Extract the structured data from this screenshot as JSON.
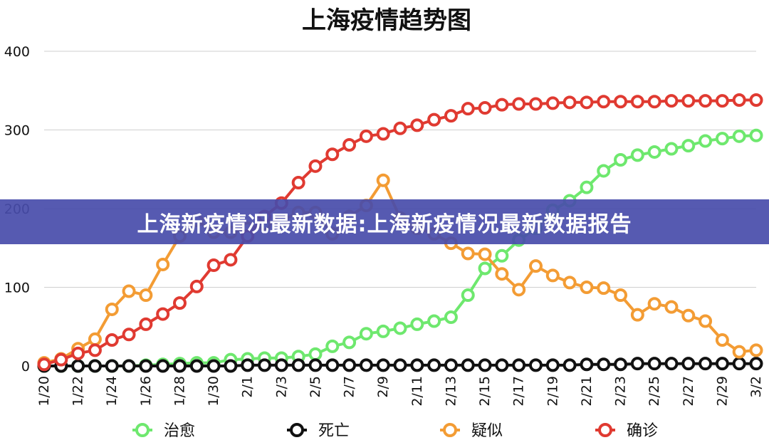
{
  "banner": {
    "text": "上海新疫情况最新数据:上海新疫情况最新数据报告"
  },
  "chart_data": {
    "type": "line",
    "title": "上海疫情趋势图",
    "xlabel": "",
    "ylabel": "",
    "ylim": [
      0,
      400
    ],
    "yticks": [
      "0",
      "100",
      "200",
      "300",
      "400"
    ],
    "grid": true,
    "legend_position": "bottom",
    "x": [
      "1/20",
      "1/21",
      "1/22",
      "1/23",
      "1/24",
      "1/25",
      "1/26",
      "1/27",
      "1/28",
      "1/29",
      "1/30",
      "1/31",
      "2/1",
      "2/2",
      "2/3",
      "2/4",
      "2/5",
      "2/6",
      "2/7",
      "2/8",
      "2/9",
      "2/10",
      "2/11",
      "2/12",
      "2/13",
      "2/14",
      "2/15",
      "2/16",
      "2/17",
      "2/18",
      "2/19",
      "2/20",
      "2/21",
      "2/22",
      "2/23",
      "2/24",
      "2/25",
      "2/26",
      "2/27",
      "2/28",
      "2/29",
      "3/1",
      "3/2"
    ],
    "xtick_labels": [
      "1/20",
      "1/22",
      "1/24",
      "1/26",
      "1/28",
      "1/30",
      "2/1",
      "2/3",
      "2/5",
      "2/7",
      "2/9",
      "2/11",
      "2/13",
      "2/15",
      "2/17",
      "2/19",
      "2/21",
      "2/23",
      "2/25",
      "2/27",
      "2/29",
      "3/2"
    ],
    "series": [
      {
        "name": "治愈",
        "color": "#6ee86e",
        "values": [
          0,
          0,
          0,
          0,
          0,
          0,
          1,
          2,
          3,
          4,
          4,
          8,
          9,
          10,
          10,
          12,
          15,
          25,
          30,
          41,
          44,
          48,
          53,
          57,
          62,
          90,
          124,
          140,
          160,
          175,
          198,
          210,
          227,
          248,
          262,
          268,
          272,
          276,
          280,
          286,
          289,
          292,
          293
        ]
      },
      {
        "name": "死亡",
        "color": "#111111",
        "values": [
          0,
          0,
          0,
          0,
          0,
          0,
          0,
          0,
          0,
          0,
          0,
          0,
          1,
          1,
          1,
          1,
          1,
          1,
          1,
          1,
          1,
          1,
          1,
          1,
          1,
          1,
          1,
          1,
          1,
          1,
          1,
          1,
          2,
          2,
          2,
          3,
          3,
          3,
          3,
          3,
          3,
          3,
          3
        ]
      },
      {
        "name": "疑似",
        "color": "#f39c34",
        "values": [
          4,
          9,
          22,
          34,
          72,
          95,
          90,
          129,
          165,
          185,
          170,
          170,
          175,
          180,
          185,
          195,
          195,
          168,
          190,
          204,
          236,
          188,
          175,
          168,
          156,
          143,
          142,
          117,
          97,
          127,
          115,
          106,
          100,
          99,
          90,
          65,
          79,
          75,
          64,
          57,
          33,
          18,
          20
        ]
      },
      {
        "name": "确诊",
        "color": "#e03a31",
        "values": [
          2,
          8,
          16,
          20,
          33,
          40,
          53,
          66,
          80,
          101,
          128,
          135,
          165,
          190,
          207,
          233,
          254,
          269,
          281,
          292,
          295,
          302,
          306,
          313,
          318,
          327,
          328,
          332,
          333,
          333,
          334,
          335,
          335,
          336,
          336,
          336,
          336,
          337,
          337,
          337,
          337,
          338,
          338
        ]
      }
    ]
  }
}
